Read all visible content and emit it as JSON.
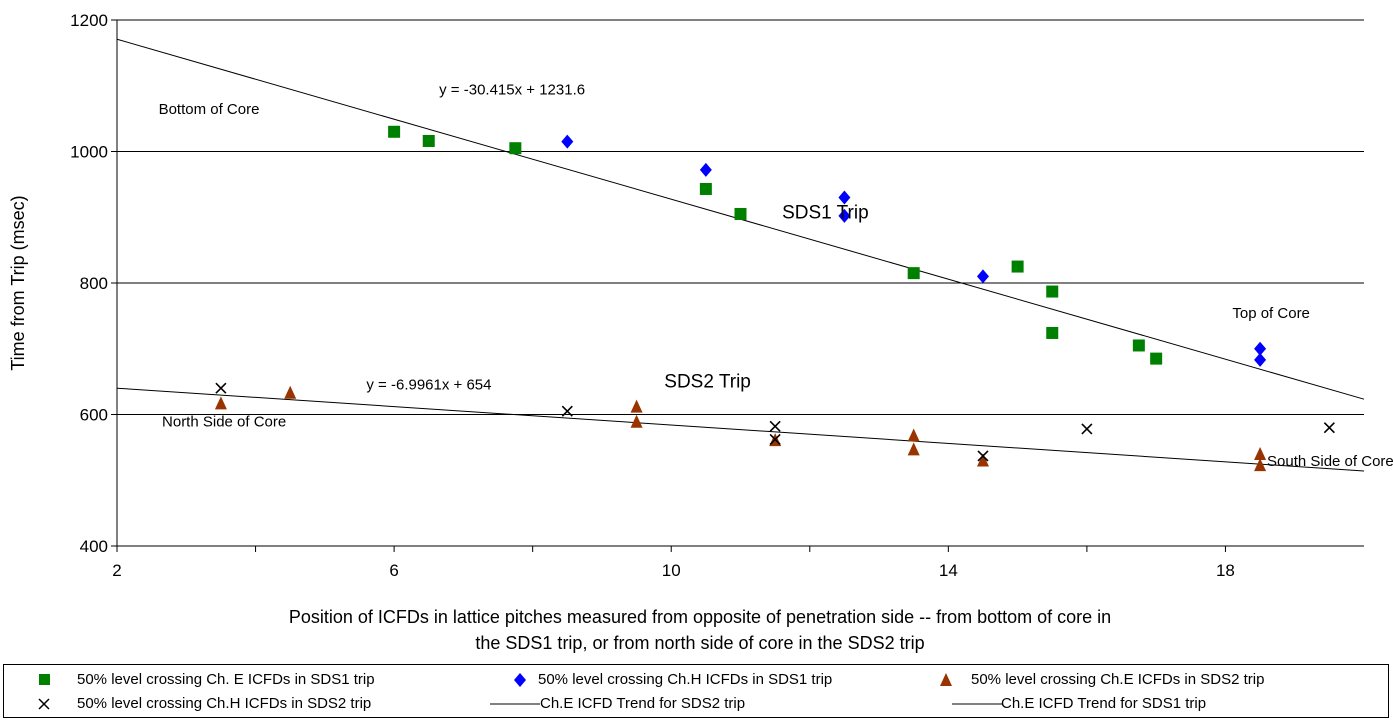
{
  "chart_data": {
    "type": "scatter",
    "xlabel_lines": [
      "Position of ICFDs in lattice pitches measured from opposite of penetration side -- from bottom of core in",
      "the SDS1 trip, or from north side of core in the SDS2 trip"
    ],
    "ylabel": "Time from Trip (msec)",
    "xlim": [
      2,
      20
    ],
    "ylim": [
      400,
      1200
    ],
    "xticks": [
      2,
      6,
      10,
      14,
      18
    ],
    "yticks": [
      400,
      600,
      800,
      1000,
      1200
    ],
    "grid": "horizontal",
    "series": [
      {
        "name": "50% level crossing Ch. E ICFDs in SDS1 trip",
        "marker": "square",
        "color": "#008000",
        "points": [
          [
            6,
            1030
          ],
          [
            6.5,
            1016
          ],
          [
            7.75,
            1005
          ],
          [
            10.5,
            943
          ],
          [
            11,
            905
          ],
          [
            13.5,
            815
          ],
          [
            15,
            825
          ],
          [
            15.5,
            787
          ],
          [
            15.5,
            724
          ],
          [
            16.75,
            705
          ],
          [
            17,
            685
          ]
        ]
      },
      {
        "name": "50% level crossing Ch.H ICFDs in SDS1 trip",
        "marker": "diamond",
        "color": "#0000ff",
        "points": [
          [
            8.5,
            1015
          ],
          [
            10.5,
            972
          ],
          [
            12.5,
            930
          ],
          [
            12.5,
            902
          ],
          [
            14.5,
            810
          ],
          [
            18.5,
            700
          ],
          [
            18.5,
            683
          ]
        ]
      },
      {
        "name": "50% level crossing Ch.E ICFDs in SDS2 trip",
        "marker": "triangle",
        "color": "#993300",
        "points": [
          [
            3.5,
            617
          ],
          [
            4.5,
            633
          ],
          [
            9.5,
            612
          ],
          [
            9.5,
            589
          ],
          [
            11.5,
            561
          ],
          [
            13.5,
            568
          ],
          [
            13.5,
            547
          ],
          [
            14.5,
            530
          ],
          [
            18.5,
            540
          ],
          [
            18.5,
            523
          ]
        ]
      },
      {
        "name": "50% level crossing Ch.H ICFDs in SDS2 trip",
        "marker": "x",
        "color": "#000000",
        "points": [
          [
            3.5,
            640
          ],
          [
            8.5,
            605
          ],
          [
            11.5,
            582
          ],
          [
            11.5,
            562
          ],
          [
            14.5,
            537
          ],
          [
            16,
            578
          ],
          [
            19.5,
            580
          ]
        ]
      }
    ],
    "trendlines": [
      {
        "name": "Ch.E ICFD Trend for SDS2 trip",
        "slope": -6.9961,
        "intercept": 654,
        "color": "#000000"
      },
      {
        "name": "Ch.E ICFD Trend for SDS1 trip",
        "slope": -30.415,
        "intercept": 1231.6,
        "color": "#000000"
      }
    ],
    "annotations": [
      {
        "text": "y = -30.415x + 1231.6",
        "x": 6.65,
        "y": 1087,
        "style": "normal"
      },
      {
        "text": "Bottom of Core",
        "x": 2.6,
        "y": 1057,
        "style": "normal"
      },
      {
        "text": "SDS1 Trip",
        "x": 11.6,
        "y": 898,
        "style": "big"
      },
      {
        "text": "Top of Core",
        "x": 18.1,
        "y": 747,
        "style": "normal"
      },
      {
        "text": "y = -6.9961x + 654",
        "x": 5.6,
        "y": 638,
        "style": "normal"
      },
      {
        "text": "SDS2 Trip",
        "x": 9.9,
        "y": 641,
        "style": "big"
      },
      {
        "text": "North Side of Core",
        "x": 2.65,
        "y": 582,
        "style": "normal"
      },
      {
        "text": "South Side of Core",
        "x": 18.6,
        "y": 522,
        "style": "normal"
      }
    ]
  }
}
